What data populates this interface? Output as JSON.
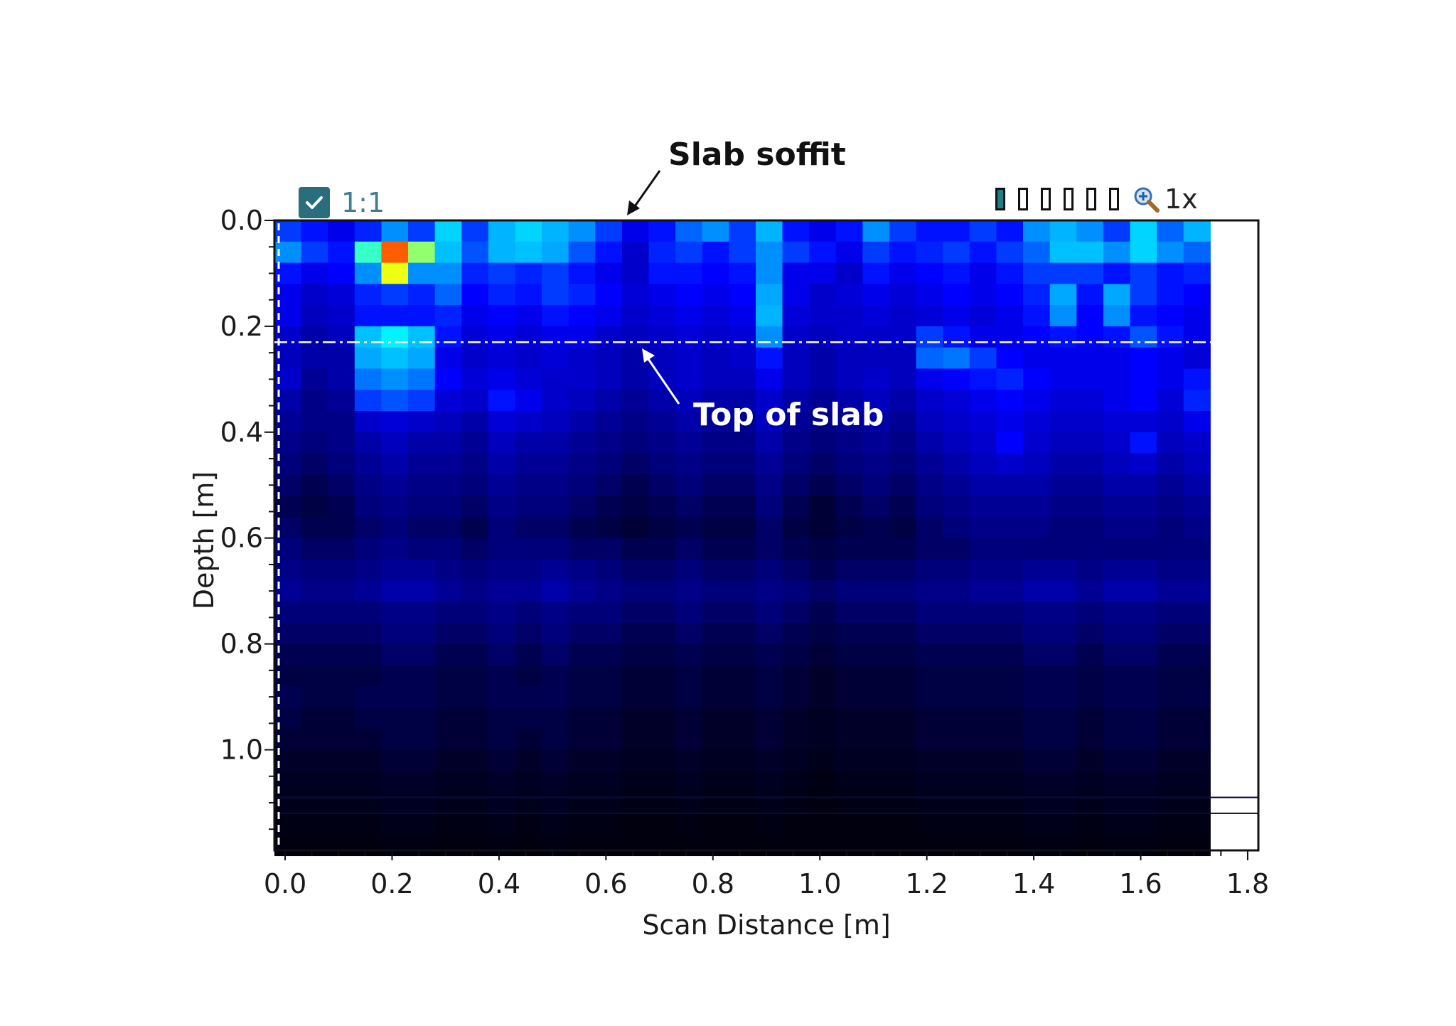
{
  "toolbar": {
    "ratio_label": "1:1",
    "zoom_label": "1x",
    "palette_count": 6
  },
  "annotations": {
    "slab_soffit": "Slab soffit",
    "top_of_slab": "Top of slab",
    "top_of_slab_depth": 0.23
  },
  "chart_data": {
    "type": "heatmap",
    "title": "",
    "xlabel": "Scan Distance [m]",
    "ylabel": "Depth [m]",
    "xlim": [
      -0.02,
      1.82
    ],
    "ylim": [
      1.19,
      0.0
    ],
    "xticks": [
      "0.0",
      "0.2",
      "0.4",
      "0.6",
      "0.8",
      "1.0",
      "1.2",
      "1.4",
      "1.6",
      "1.8"
    ],
    "yticks": [
      "0.0",
      "0.2",
      "0.4",
      "0.6",
      "0.8",
      "1.0"
    ],
    "colormap": [
      "#000000",
      "#00007a",
      "#0000ff",
      "#00a8ff",
      "#00ffff",
      "#ffff00",
      "#ff0000"
    ],
    "legend": "none",
    "grid": false,
    "cell_width_m": 0.05,
    "cell_height_m": 0.04,
    "x_start_m": -0.02,
    "rows_note": "each row = one depth band of 0.04 m starting at 0.0 m; each value = relative reflection amplitude 0-1",
    "values": [
      [
        0.45,
        0.4,
        0.35,
        0.42,
        0.55,
        0.45,
        0.65,
        0.45,
        0.6,
        0.65,
        0.6,
        0.55,
        0.45,
        0.35,
        0.4,
        0.5,
        0.55,
        0.45,
        0.6,
        0.4,
        0.35,
        0.4,
        0.55,
        0.45,
        0.4,
        0.4,
        0.45,
        0.4,
        0.55,
        0.6,
        0.55,
        0.45,
        0.65,
        0.5,
        0.6
      ],
      [
        0.55,
        0.45,
        0.4,
        0.75,
        0.95,
        0.8,
        0.62,
        0.48,
        0.6,
        0.62,
        0.58,
        0.48,
        0.4,
        0.3,
        0.42,
        0.45,
        0.4,
        0.45,
        0.55,
        0.45,
        0.4,
        0.35,
        0.45,
        0.4,
        0.42,
        0.45,
        0.4,
        0.45,
        0.5,
        0.62,
        0.62,
        0.55,
        0.65,
        0.55,
        0.5
      ],
      [
        0.4,
        0.35,
        0.38,
        0.55,
        0.85,
        0.55,
        0.55,
        0.42,
        0.45,
        0.42,
        0.45,
        0.4,
        0.35,
        0.3,
        0.4,
        0.4,
        0.38,
        0.4,
        0.55,
        0.35,
        0.35,
        0.3,
        0.4,
        0.35,
        0.38,
        0.4,
        0.35,
        0.4,
        0.45,
        0.45,
        0.45,
        0.4,
        0.45,
        0.4,
        0.42
      ],
      [
        0.35,
        0.3,
        0.32,
        0.42,
        0.45,
        0.42,
        0.5,
        0.38,
        0.42,
        0.4,
        0.45,
        0.42,
        0.38,
        0.32,
        0.35,
        0.38,
        0.35,
        0.38,
        0.58,
        0.35,
        0.3,
        0.32,
        0.35,
        0.32,
        0.35,
        0.38,
        0.35,
        0.38,
        0.42,
        0.58,
        0.4,
        0.58,
        0.45,
        0.4,
        0.38
      ],
      [
        0.35,
        0.28,
        0.3,
        0.4,
        0.4,
        0.4,
        0.42,
        0.35,
        0.38,
        0.35,
        0.4,
        0.38,
        0.35,
        0.3,
        0.32,
        0.35,
        0.32,
        0.35,
        0.6,
        0.32,
        0.3,
        0.3,
        0.32,
        0.3,
        0.32,
        0.35,
        0.32,
        0.35,
        0.4,
        0.55,
        0.38,
        0.55,
        0.4,
        0.38,
        0.35
      ],
      [
        0.3,
        0.25,
        0.28,
        0.62,
        0.7,
        0.62,
        0.4,
        0.32,
        0.35,
        0.32,
        0.35,
        0.35,
        0.3,
        0.28,
        0.3,
        0.32,
        0.3,
        0.32,
        0.55,
        0.3,
        0.28,
        0.3,
        0.3,
        0.3,
        0.45,
        0.4,
        0.35,
        0.35,
        0.38,
        0.4,
        0.38,
        0.4,
        0.48,
        0.4,
        0.35
      ],
      [
        0.28,
        0.25,
        0.25,
        0.58,
        0.62,
        0.58,
        0.35,
        0.3,
        0.32,
        0.3,
        0.32,
        0.3,
        0.28,
        0.25,
        0.28,
        0.3,
        0.28,
        0.3,
        0.4,
        0.28,
        0.25,
        0.28,
        0.28,
        0.28,
        0.5,
        0.52,
        0.45,
        0.38,
        0.35,
        0.35,
        0.35,
        0.35,
        0.38,
        0.35,
        0.32
      ],
      [
        0.3,
        0.22,
        0.25,
        0.52,
        0.55,
        0.52,
        0.38,
        0.32,
        0.35,
        0.32,
        0.3,
        0.3,
        0.28,
        0.25,
        0.28,
        0.3,
        0.28,
        0.28,
        0.35,
        0.28,
        0.25,
        0.28,
        0.3,
        0.28,
        0.35,
        0.38,
        0.4,
        0.42,
        0.38,
        0.35,
        0.35,
        0.35,
        0.38,
        0.35,
        0.4
      ],
      [
        0.25,
        0.2,
        0.22,
        0.45,
        0.48,
        0.45,
        0.32,
        0.3,
        0.4,
        0.35,
        0.3,
        0.28,
        0.25,
        0.22,
        0.25,
        0.28,
        0.25,
        0.25,
        0.3,
        0.25,
        0.22,
        0.25,
        0.28,
        0.25,
        0.3,
        0.32,
        0.35,
        0.38,
        0.35,
        0.32,
        0.32,
        0.35,
        0.38,
        0.32,
        0.42
      ],
      [
        0.22,
        0.2,
        0.2,
        0.3,
        0.32,
        0.3,
        0.28,
        0.25,
        0.32,
        0.3,
        0.28,
        0.25,
        0.22,
        0.2,
        0.22,
        0.25,
        0.22,
        0.22,
        0.28,
        0.22,
        0.2,
        0.22,
        0.25,
        0.22,
        0.28,
        0.3,
        0.32,
        0.35,
        0.32,
        0.3,
        0.3,
        0.32,
        0.32,
        0.3,
        0.35
      ],
      [
        0.2,
        0.18,
        0.2,
        0.25,
        0.28,
        0.25,
        0.25,
        0.22,
        0.28,
        0.25,
        0.25,
        0.22,
        0.2,
        0.18,
        0.2,
        0.22,
        0.2,
        0.2,
        0.25,
        0.2,
        0.18,
        0.2,
        0.22,
        0.2,
        0.25,
        0.28,
        0.3,
        0.38,
        0.3,
        0.28,
        0.28,
        0.3,
        0.4,
        0.28,
        0.3
      ],
      [
        0.18,
        0.15,
        0.18,
        0.22,
        0.25,
        0.22,
        0.22,
        0.2,
        0.25,
        0.22,
        0.22,
        0.2,
        0.18,
        0.15,
        0.18,
        0.2,
        0.18,
        0.18,
        0.22,
        0.18,
        0.15,
        0.18,
        0.2,
        0.18,
        0.22,
        0.25,
        0.28,
        0.3,
        0.28,
        0.25,
        0.25,
        0.28,
        0.3,
        0.25,
        0.28
      ],
      [
        0.15,
        0.12,
        0.15,
        0.2,
        0.22,
        0.2,
        0.2,
        0.18,
        0.22,
        0.2,
        0.2,
        0.18,
        0.15,
        0.12,
        0.15,
        0.18,
        0.15,
        0.15,
        0.2,
        0.15,
        0.12,
        0.15,
        0.18,
        0.15,
        0.2,
        0.22,
        0.25,
        0.25,
        0.25,
        0.22,
        0.22,
        0.25,
        0.25,
        0.22,
        0.25
      ],
      [
        0.12,
        0.1,
        0.12,
        0.18,
        0.2,
        0.18,
        0.18,
        0.15,
        0.2,
        0.18,
        0.18,
        0.15,
        0.12,
        0.1,
        0.12,
        0.15,
        0.12,
        0.12,
        0.18,
        0.12,
        0.08,
        0.12,
        0.15,
        0.12,
        0.18,
        0.2,
        0.22,
        0.22,
        0.22,
        0.2,
        0.2,
        0.22,
        0.22,
        0.2,
        0.22
      ],
      [
        0.15,
        0.12,
        0.12,
        0.15,
        0.18,
        0.15,
        0.15,
        0.12,
        0.18,
        0.15,
        0.15,
        0.12,
        0.1,
        0.08,
        0.1,
        0.12,
        0.1,
        0.1,
        0.15,
        0.1,
        0.08,
        0.1,
        0.12,
        0.1,
        0.15,
        0.18,
        0.2,
        0.2,
        0.2,
        0.18,
        0.18,
        0.2,
        0.2,
        0.18,
        0.2
      ],
      [
        0.18,
        0.15,
        0.15,
        0.18,
        0.2,
        0.18,
        0.18,
        0.15,
        0.18,
        0.18,
        0.18,
        0.15,
        0.15,
        0.12,
        0.12,
        0.15,
        0.12,
        0.12,
        0.15,
        0.12,
        0.1,
        0.12,
        0.12,
        0.12,
        0.15,
        0.15,
        0.18,
        0.18,
        0.18,
        0.18,
        0.18,
        0.18,
        0.18,
        0.18,
        0.18
      ],
      [
        0.2,
        0.18,
        0.18,
        0.2,
        0.22,
        0.22,
        0.2,
        0.18,
        0.2,
        0.2,
        0.22,
        0.2,
        0.18,
        0.15,
        0.15,
        0.18,
        0.15,
        0.15,
        0.18,
        0.15,
        0.12,
        0.15,
        0.15,
        0.15,
        0.18,
        0.18,
        0.2,
        0.2,
        0.22,
        0.22,
        0.2,
        0.22,
        0.22,
        0.2,
        0.2
      ],
      [
        0.22,
        0.2,
        0.2,
        0.22,
        0.25,
        0.25,
        0.22,
        0.2,
        0.22,
        0.22,
        0.25,
        0.22,
        0.2,
        0.18,
        0.18,
        0.2,
        0.18,
        0.18,
        0.2,
        0.18,
        0.15,
        0.18,
        0.18,
        0.18,
        0.2,
        0.2,
        0.22,
        0.22,
        0.25,
        0.25,
        0.22,
        0.25,
        0.25,
        0.22,
        0.22
      ],
      [
        0.18,
        0.18,
        0.18,
        0.18,
        0.2,
        0.2,
        0.18,
        0.18,
        0.2,
        0.18,
        0.2,
        0.18,
        0.18,
        0.15,
        0.15,
        0.18,
        0.15,
        0.15,
        0.18,
        0.15,
        0.12,
        0.15,
        0.15,
        0.15,
        0.18,
        0.18,
        0.18,
        0.18,
        0.2,
        0.2,
        0.18,
        0.2,
        0.2,
        0.18,
        0.18
      ],
      [
        0.15,
        0.15,
        0.15,
        0.15,
        0.18,
        0.18,
        0.15,
        0.15,
        0.18,
        0.15,
        0.18,
        0.15,
        0.15,
        0.12,
        0.12,
        0.15,
        0.12,
        0.12,
        0.15,
        0.12,
        0.1,
        0.12,
        0.12,
        0.12,
        0.15,
        0.15,
        0.15,
        0.15,
        0.18,
        0.18,
        0.15,
        0.18,
        0.18,
        0.15,
        0.15
      ],
      [
        0.12,
        0.12,
        0.12,
        0.12,
        0.15,
        0.15,
        0.12,
        0.12,
        0.15,
        0.12,
        0.15,
        0.12,
        0.12,
        0.1,
        0.1,
        0.12,
        0.1,
        0.1,
        0.12,
        0.1,
        0.08,
        0.1,
        0.1,
        0.1,
        0.12,
        0.12,
        0.12,
        0.12,
        0.15,
        0.15,
        0.12,
        0.15,
        0.15,
        0.12,
        0.12
      ],
      [
        0.1,
        0.1,
        0.1,
        0.1,
        0.12,
        0.12,
        0.1,
        0.1,
        0.12,
        0.1,
        0.12,
        0.1,
        0.1,
        0.08,
        0.08,
        0.1,
        0.08,
        0.08,
        0.1,
        0.08,
        0.06,
        0.08,
        0.08,
        0.08,
        0.1,
        0.1,
        0.1,
        0.1,
        0.12,
        0.12,
        0.1,
        0.12,
        0.12,
        0.1,
        0.1
      ],
      [
        0.12,
        0.1,
        0.1,
        0.12,
        0.12,
        0.12,
        0.1,
        0.1,
        0.12,
        0.12,
        0.12,
        0.1,
        0.1,
        0.08,
        0.08,
        0.1,
        0.08,
        0.08,
        0.1,
        0.08,
        0.06,
        0.08,
        0.08,
        0.08,
        0.1,
        0.1,
        0.1,
        0.1,
        0.12,
        0.12,
        0.1,
        0.12,
        0.12,
        0.1,
        0.1
      ],
      [
        0.1,
        0.08,
        0.08,
        0.1,
        0.1,
        0.1,
        0.08,
        0.08,
        0.1,
        0.1,
        0.1,
        0.08,
        0.08,
        0.06,
        0.06,
        0.08,
        0.06,
        0.06,
        0.08,
        0.06,
        0.05,
        0.06,
        0.06,
        0.06,
        0.08,
        0.08,
        0.08,
        0.08,
        0.1,
        0.1,
        0.08,
        0.1,
        0.1,
        0.08,
        0.08
      ],
      [
        0.08,
        0.08,
        0.08,
        0.08,
        0.1,
        0.1,
        0.08,
        0.08,
        0.1,
        0.08,
        0.1,
        0.08,
        0.08,
        0.06,
        0.06,
        0.08,
        0.06,
        0.06,
        0.08,
        0.06,
        0.05,
        0.06,
        0.06,
        0.06,
        0.08,
        0.08,
        0.08,
        0.08,
        0.1,
        0.1,
        0.08,
        0.1,
        0.1,
        0.08,
        0.08
      ],
      [
        0.06,
        0.06,
        0.06,
        0.06,
        0.08,
        0.08,
        0.06,
        0.06,
        0.08,
        0.06,
        0.08,
        0.06,
        0.06,
        0.05,
        0.05,
        0.06,
        0.05,
        0.05,
        0.06,
        0.05,
        0.04,
        0.05,
        0.05,
        0.05,
        0.06,
        0.06,
        0.06,
        0.06,
        0.08,
        0.08,
        0.06,
        0.08,
        0.08,
        0.06,
        0.06
      ],
      [
        0.05,
        0.05,
        0.05,
        0.05,
        0.06,
        0.06,
        0.05,
        0.05,
        0.06,
        0.05,
        0.06,
        0.05,
        0.05,
        0.04,
        0.04,
        0.05,
        0.04,
        0.04,
        0.05,
        0.04,
        0.03,
        0.04,
        0.04,
        0.04,
        0.05,
        0.05,
        0.05,
        0.05,
        0.06,
        0.06,
        0.05,
        0.06,
        0.06,
        0.05,
        0.05
      ],
      [
        0.04,
        0.04,
        0.04,
        0.04,
        0.05,
        0.05,
        0.04,
        0.04,
        0.05,
        0.04,
        0.05,
        0.04,
        0.04,
        0.03,
        0.03,
        0.04,
        0.03,
        0.03,
        0.04,
        0.03,
        0.02,
        0.03,
        0.03,
        0.03,
        0.04,
        0.04,
        0.04,
        0.04,
        0.05,
        0.05,
        0.04,
        0.05,
        0.05,
        0.04,
        0.04
      ],
      [
        0.03,
        0.03,
        0.03,
        0.03,
        0.04,
        0.04,
        0.03,
        0.03,
        0.04,
        0.03,
        0.04,
        0.03,
        0.03,
        0.02,
        0.02,
        0.03,
        0.02,
        0.02,
        0.03,
        0.02,
        0.02,
        0.02,
        0.02,
        0.02,
        0.03,
        0.03,
        0.03,
        0.03,
        0.04,
        0.04,
        0.03,
        0.04,
        0.04,
        0.03,
        0.03
      ],
      [
        0.02,
        0.02,
        0.02,
        0.02,
        0.03,
        0.03,
        0.02,
        0.02,
        0.03,
        0.02,
        0.03,
        0.02,
        0.02,
        0.02,
        0.02,
        0.02,
        0.02,
        0.02,
        0.02,
        0.02,
        0.02,
        0.02,
        0.02,
        0.02,
        0.02,
        0.02,
        0.02,
        0.02,
        0.03,
        0.03,
        0.02,
        0.03,
        0.03,
        0.02,
        0.02
      ]
    ]
  }
}
